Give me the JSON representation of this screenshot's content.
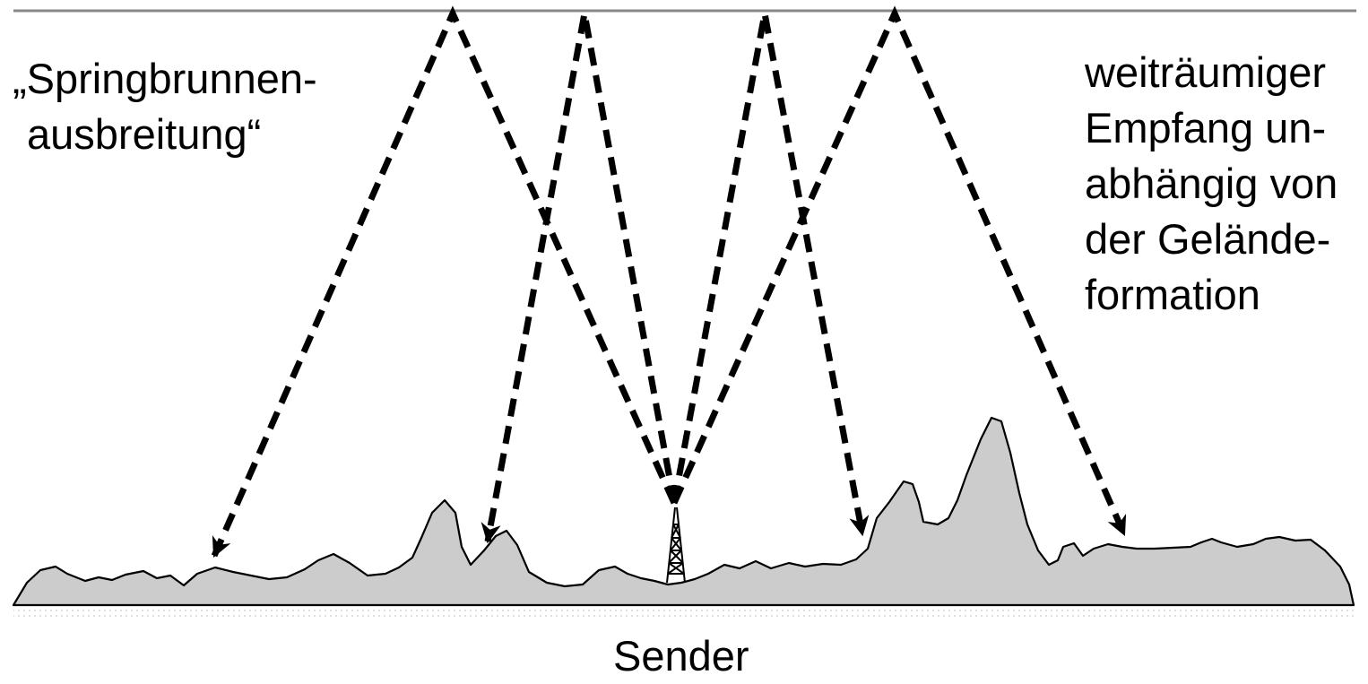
{
  "labels": {
    "fountain": [
      "„Springbrunnen-",
      "ausbreitung“"
    ],
    "reception": [
      "weiträumiger",
      "Empfang un-",
      "abhängig von",
      "der Gelände-",
      "formation"
    ],
    "transmitter": "Sender"
  },
  "colors": {
    "terrain_fill": "#cccccc",
    "terrain_outline": "#000000",
    "ionosphere_line": "#888888",
    "ray": "#000000",
    "text": "#000000",
    "background": "#ffffff"
  },
  "elements": {
    "ionosphere": "ionosphere-layer",
    "terrain": "terrain-profile",
    "tower": "transmitter-tower-icon",
    "rays": "dashed-arrow"
  }
}
